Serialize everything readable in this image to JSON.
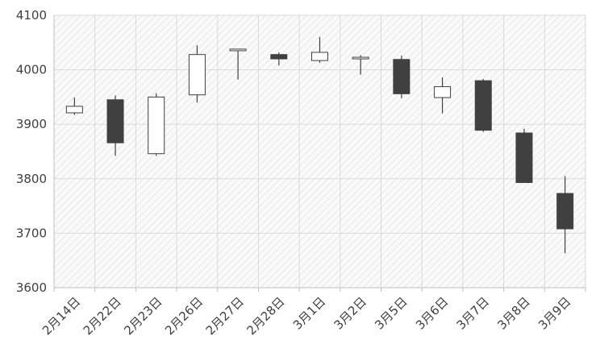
{
  "chart_data": {
    "type": "candlestick",
    "categories": [
      "2月14日",
      "2月22日",
      "2月23日",
      "2月26日",
      "2月27日",
      "2月28日",
      "3月1日",
      "3月2日",
      "3月5日",
      "3月6日",
      "3月7日",
      "3月8日",
      "3月9日"
    ],
    "open": [
      3921,
      3945,
      3846,
      3954,
      4035,
      4028,
      4017,
      4022,
      4019,
      3949,
      3980,
      3884,
      3773
    ],
    "high": [
      3949,
      3953,
      3957,
      4045,
      4038,
      4032,
      4060,
      4027,
      4026,
      3986,
      3983,
      3892,
      3805
    ],
    "low": [
      3917,
      3842,
      3842,
      3940,
      3982,
      4008,
      4013,
      3991,
      3948,
      3920,
      3886,
      3793,
      3663
    ],
    "close": [
      3933,
      3866,
      3950,
      4028,
      4038,
      4020,
      4032,
      4023,
      3956,
      3969,
      3889,
      3793,
      3708
    ],
    "y_ticks": [
      "3600",
      "3700",
      "3800",
      "3900",
      "4000",
      "4100"
    ],
    "ylim": [
      3600,
      4100
    ],
    "grid": true,
    "colors": {
      "up_fill": "#ffffff",
      "down_fill": "#404040",
      "outline": "#404040",
      "grid": "#d9d9d9",
      "hatch": "#e4e4e4"
    }
  }
}
